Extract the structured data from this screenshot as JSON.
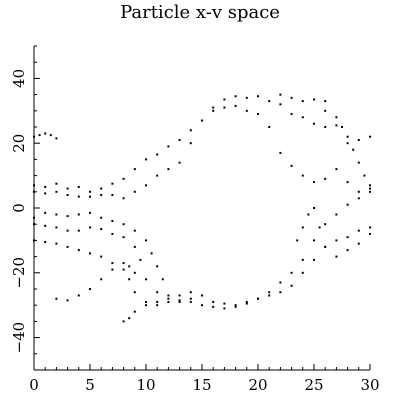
{
  "chart_data": {
    "type": "scatter",
    "title": "Particle x-v space",
    "xlabel": "",
    "ylabel": "",
    "xlim": [
      0,
      30
    ],
    "ylim": [
      -50,
      50
    ],
    "xticks": [
      0,
      5,
      10,
      15,
      20,
      25,
      30
    ],
    "yticks": [
      -40,
      -20,
      0,
      20,
      40
    ],
    "grid": false,
    "marker_color": "#000000",
    "series": [
      {
        "points": [
          [
            0.0,
            22.0
          ],
          [
            0.5,
            22.5
          ],
          [
            1.0,
            23.0
          ],
          [
            1.5,
            22.5
          ],
          [
            2.0,
            21.5
          ],
          [
            0.0,
            7.0
          ],
          [
            1.0,
            6.5
          ],
          [
            2.0,
            7.5
          ],
          [
            3.0,
            6.0
          ],
          [
            4.0,
            6.5
          ],
          [
            5.0,
            5.0
          ],
          [
            6.0,
            6.0
          ],
          [
            7.0,
            7.5
          ],
          [
            8.0,
            9.0
          ],
          [
            9.0,
            12.0
          ],
          [
            10.0,
            15.0
          ],
          [
            11.0,
            16.5
          ],
          [
            12.0,
            19.0
          ],
          [
            13.0,
            21.0
          ],
          [
            14.0,
            24.0
          ],
          [
            15.0,
            27.0
          ],
          [
            16.0,
            31.0
          ],
          [
            17.0,
            33.5
          ],
          [
            18.0,
            34.5
          ],
          [
            19.0,
            34.0
          ],
          [
            20.0,
            34.5
          ],
          [
            21.0,
            33.0
          ],
          [
            22.0,
            32.0
          ],
          [
            23.0,
            29.0
          ],
          [
            24.0,
            28.0
          ],
          [
            25.0,
            26.0
          ],
          [
            26.0,
            25.0
          ],
          [
            27.0,
            25.5
          ],
          [
            28.0,
            20.0
          ],
          [
            29.0,
            21.0
          ],
          [
            30.0,
            22.0
          ],
          [
            0.0,
            5.0
          ],
          [
            1.0,
            4.5
          ],
          [
            2.0,
            5.0
          ],
          [
            3.0,
            4.0
          ],
          [
            4.0,
            3.5
          ],
          [
            5.0,
            3.5
          ],
          [
            6.0,
            4.0
          ],
          [
            7.0,
            4.0
          ],
          [
            8.0,
            3.0
          ],
          [
            9.0,
            5.0
          ],
          [
            10.0,
            7.0
          ],
          [
            11.0,
            10.0
          ],
          [
            12.0,
            12.0
          ],
          [
            13.0,
            14.0
          ],
          [
            14.0,
            20.0
          ],
          [
            15.0,
            27.0
          ],
          [
            16.0,
            30.0
          ],
          [
            17.0,
            31.0
          ],
          [
            18.0,
            31.5
          ],
          [
            19.0,
            30.0
          ],
          [
            20.0,
            29.0
          ],
          [
            21.0,
            25.0
          ],
          [
            22.0,
            17.0
          ],
          [
            23.0,
            13.0
          ],
          [
            24.0,
            10.0
          ],
          [
            25.0,
            8.0
          ],
          [
            26.0,
            9.0
          ],
          [
            27.0,
            12.0
          ],
          [
            28.0,
            8.0
          ],
          [
            29.0,
            5.0
          ],
          [
            30.0,
            6.0
          ],
          [
            0.0,
            -3.0
          ],
          [
            1.0,
            -1.5
          ],
          [
            2.0,
            -2.0
          ],
          [
            3.0,
            -2.5
          ],
          [
            4.0,
            -2.0
          ],
          [
            5.0,
            -1.5
          ],
          [
            6.0,
            -3.0
          ],
          [
            7.0,
            -4.0
          ],
          [
            8.0,
            -5.0
          ],
          [
            9.0,
            -7.0
          ],
          [
            10.0,
            -10.0
          ],
          [
            10.5,
            -14.0
          ],
          [
            11.0,
            -18.0
          ],
          [
            11.5,
            -22.0
          ],
          [
            12.0,
            -27.0
          ],
          [
            13.0,
            -29.0
          ],
          [
            14.0,
            -28.0
          ],
          [
            15.0,
            -27.0
          ],
          [
            16.0,
            -29.0
          ],
          [
            17.0,
            -29.5
          ],
          [
            18.0,
            -30.0
          ],
          [
            19.0,
            -29.0
          ],
          [
            20.0,
            -28.0
          ],
          [
            21.0,
            -26.0
          ],
          [
            22.0,
            -23.0
          ],
          [
            23.0,
            -20.0
          ],
          [
            24.0,
            -16.0
          ],
          [
            25.0,
            -10.0
          ],
          [
            26.0,
            -5.0
          ],
          [
            27.0,
            -2.0
          ],
          [
            28.0,
            1.0
          ],
          [
            29.0,
            3.0
          ],
          [
            30.0,
            5.0
          ],
          [
            0.0,
            -5.0
          ],
          [
            1.0,
            -5.5
          ],
          [
            2.0,
            -6.0
          ],
          [
            3.0,
            -7.0
          ],
          [
            4.0,
            -7.0
          ],
          [
            5.0,
            -6.0
          ],
          [
            6.0,
            -6.5
          ],
          [
            7.0,
            -8.0
          ],
          [
            8.0,
            -9.0
          ],
          [
            9.0,
            -12.0
          ],
          [
            9.5,
            -16.0
          ],
          [
            10.0,
            -22.0
          ],
          [
            11.0,
            -26.0
          ],
          [
            12.0,
            -28.0
          ],
          [
            13.0,
            -28.5
          ],
          [
            14.0,
            -29.0
          ],
          [
            15.0,
            -30.0
          ],
          [
            16.0,
            -30.5
          ],
          [
            17.0,
            -31.0
          ],
          [
            18.0,
            -30.5
          ],
          [
            19.0,
            -29.5
          ],
          [
            20.0,
            -28.0
          ],
          [
            21.0,
            -27.0
          ],
          [
            22.0,
            -26.0
          ],
          [
            23.0,
            -24.0
          ],
          [
            24.0,
            -20.0
          ],
          [
            25.0,
            -16.0
          ],
          [
            26.0,
            -12.0
          ],
          [
            27.0,
            -10.0
          ],
          [
            28.0,
            -9.0
          ],
          [
            29.0,
            -7.0
          ],
          [
            30.0,
            -6.0
          ],
          [
            0.0,
            -10.0
          ],
          [
            1.0,
            -10.5
          ],
          [
            2.0,
            -11.0
          ],
          [
            3.0,
            -12.0
          ],
          [
            4.0,
            -13.0
          ],
          [
            5.0,
            -14.0
          ],
          [
            6.0,
            -15.0
          ],
          [
            7.0,
            -17.0
          ],
          [
            8.0,
            -19.0
          ],
          [
            8.5,
            -22.0
          ],
          [
            9.0,
            -26.0
          ],
          [
            10.0,
            -29.0
          ],
          [
            11.0,
            -30.0
          ],
          [
            12.0,
            -29.0
          ],
          [
            13.0,
            -27.0
          ],
          [
            14.0,
            -26.0
          ],
          [
            2.0,
            -28.0
          ],
          [
            3.0,
            -28.5
          ],
          [
            4.0,
            -27.0
          ],
          [
            5.0,
            -25.0
          ],
          [
            6.0,
            -22.0
          ],
          [
            7.0,
            -19.0
          ],
          [
            8.0,
            -17.0
          ],
          [
            8.5,
            -18.0
          ],
          [
            9.0,
            -20.0
          ],
          [
            8.0,
            -35.0
          ],
          [
            8.5,
            -34.0
          ],
          [
            9.0,
            -32.0
          ],
          [
            10.0,
            -30.0
          ],
          [
            11.0,
            -29.0
          ],
          [
            23.5,
            -10.0
          ],
          [
            24.0,
            -6.0
          ],
          [
            24.5,
            -2.0
          ],
          [
            25.0,
            0.0
          ],
          [
            25.5,
            -6.0
          ],
          [
            26.0,
            -12.0
          ],
          [
            27.0,
            -15.0
          ],
          [
            28.0,
            -13.0
          ],
          [
            29.0,
            -11.0
          ],
          [
            30.0,
            -8.0
          ],
          [
            26.0,
            30.0
          ],
          [
            27.0,
            28.0
          ],
          [
            27.5,
            25.0
          ],
          [
            28.0,
            22.0
          ],
          [
            28.5,
            18.0
          ],
          [
            29.0,
            14.0
          ],
          [
            29.5,
            10.0
          ],
          [
            30.0,
            7.0
          ],
          [
            22.0,
            35.0
          ],
          [
            23.0,
            34.0
          ],
          [
            24.0,
            33.0
          ],
          [
            25.0,
            33.5
          ],
          [
            26.0,
            33.0
          ]
        ]
      }
    ]
  }
}
